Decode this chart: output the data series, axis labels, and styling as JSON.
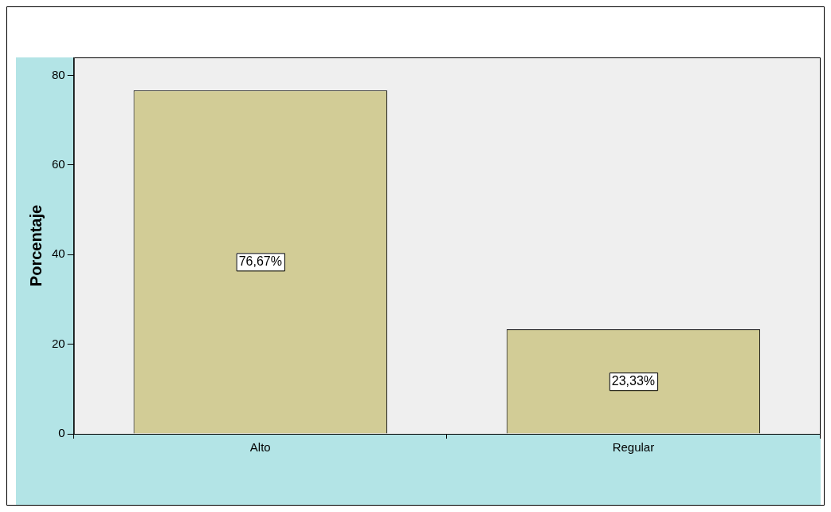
{
  "chart_data": {
    "type": "bar",
    "ylabel": "Porcentaje",
    "categories": [
      "Alto",
      "Regular"
    ],
    "values": [
      76.67,
      23.33
    ],
    "color": "#d2cc96",
    "value_labels": [
      "76,67%",
      "23,33%"
    ],
    "ylim": [
      0,
      84
    ],
    "yticks": [
      0,
      20,
      40,
      60,
      80
    ],
    "grid": false,
    "legend": false
  }
}
